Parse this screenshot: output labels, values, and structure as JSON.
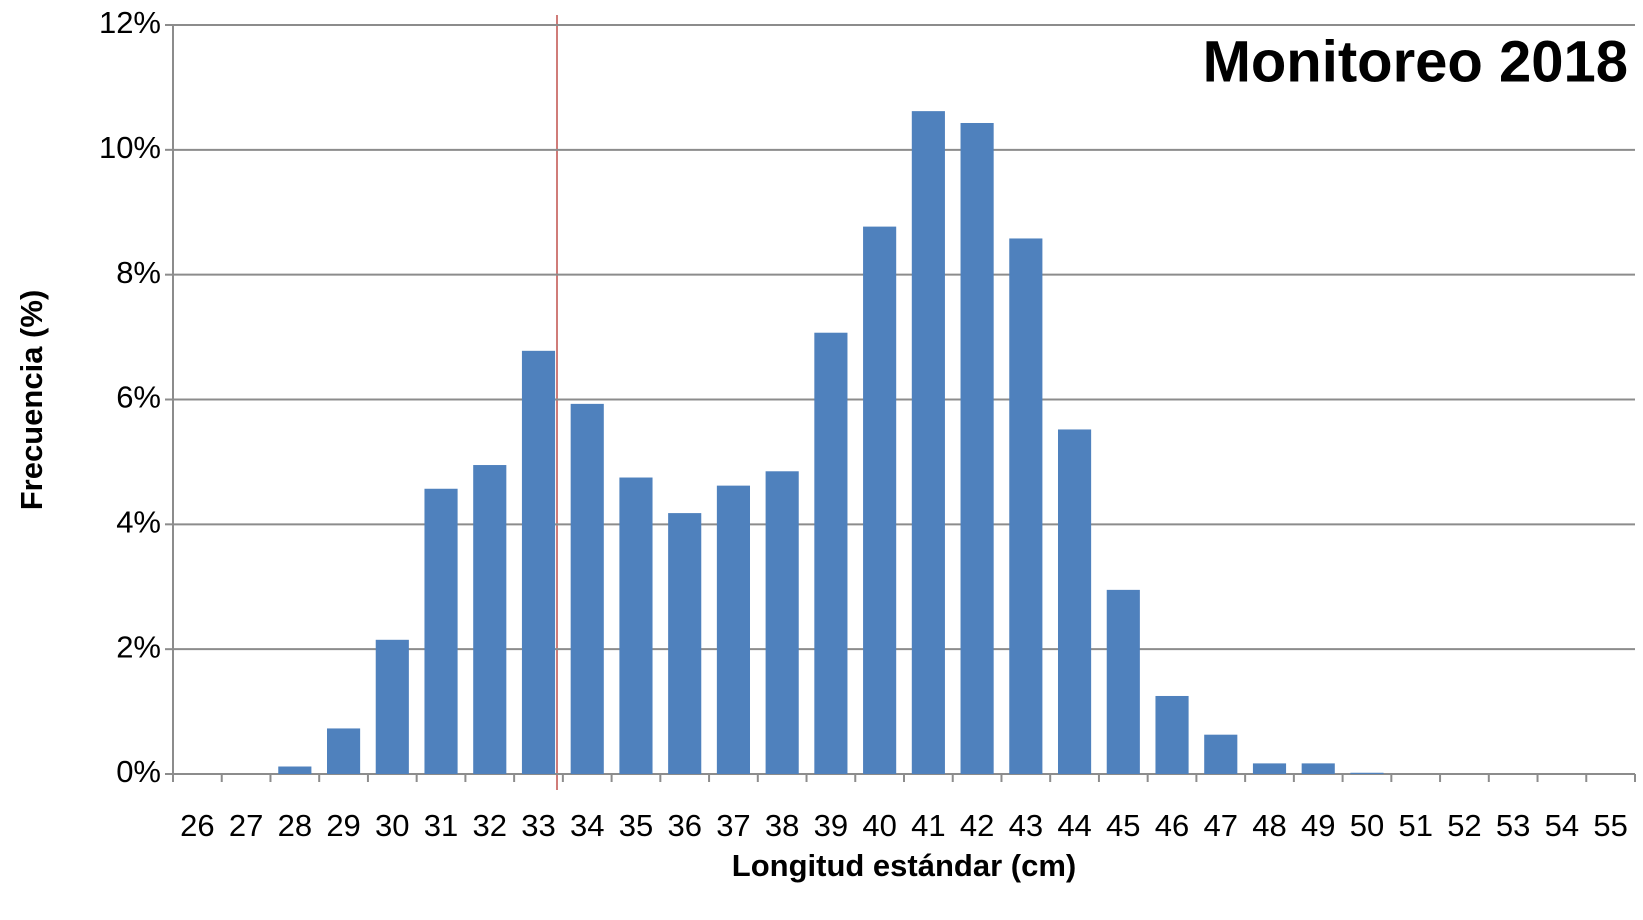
{
  "chart_data": {
    "type": "bar",
    "title": "Monitoreo 2018",
    "x_label": "Longitud estándar (cm)",
    "y_label": "Frecuencia (%)",
    "categories": [
      "26",
      "27",
      "28",
      "29",
      "30",
      "31",
      "32",
      "33",
      "34",
      "35",
      "36",
      "37",
      "38",
      "39",
      "40",
      "41",
      "42",
      "43",
      "44",
      "45",
      "46",
      "47",
      "48",
      "49",
      "50",
      "51",
      "52",
      "53",
      "54",
      "55"
    ],
    "values": [
      0,
      0,
      0.12,
      0.73,
      2.15,
      4.57,
      4.95,
      6.78,
      5.93,
      4.75,
      4.18,
      4.62,
      4.85,
      7.07,
      8.77,
      10.62,
      10.43,
      8.58,
      5.52,
      2.95,
      1.25,
      0.63,
      0.17,
      0.17,
      0.02,
      0,
      0,
      0,
      0,
      0
    ],
    "color": "#4f81bd",
    "ylim": [
      0,
      12
    ],
    "yticks": [
      {
        "value": 0,
        "label": "0%"
      },
      {
        "value": 2,
        "label": "2%"
      },
      {
        "value": 4,
        "label": "4%"
      },
      {
        "value": 6,
        "label": "6%"
      },
      {
        "value": 8,
        "label": "8%"
      },
      {
        "value": 10,
        "label": "10%"
      },
      {
        "value": 12,
        "label": "12%"
      }
    ],
    "grid": true
  }
}
